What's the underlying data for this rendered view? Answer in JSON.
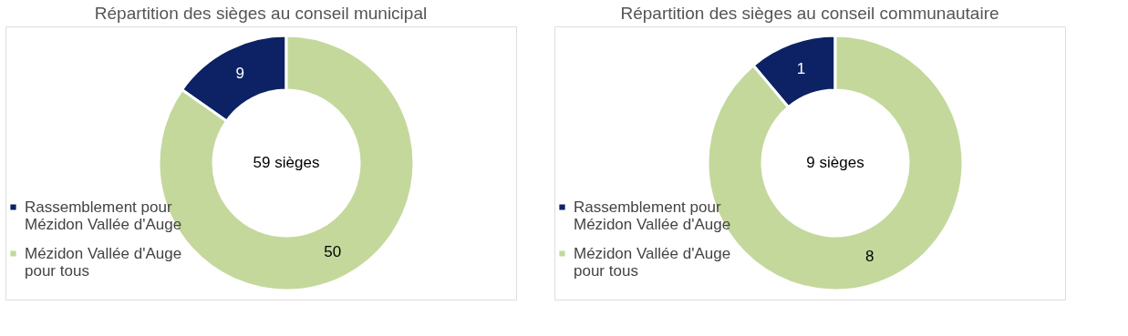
{
  "chart_data": [
    {
      "type": "donut",
      "title": "Répartition des sièges au conseil municipal",
      "categories": [
        "Rassemblement pour Mézidon Vallée d'Auge",
        "Mézidon Vallée d'Auge pour tous"
      ],
      "values": [
        9,
        50
      ],
      "colors": [
        "#0c2264",
        "#c4d89c"
      ],
      "data_labels": true,
      "legend": "bottom left",
      "annotations": [
        "59 sièges"
      ]
    },
    {
      "type": "donut",
      "title": "Répartition des sièges au conseil communautaire",
      "categories": [
        "Rassemblement pour Mézidon Vallée d'Auge",
        "Mézidon Vallée d'Auge pour tous"
      ],
      "values": [
        1,
        8
      ],
      "colors": [
        "#0c2264",
        "#c4d89c"
      ],
      "data_labels": true,
      "legend": "bottom left",
      "annotations": [
        "9 sièges"
      ]
    }
  ]
}
